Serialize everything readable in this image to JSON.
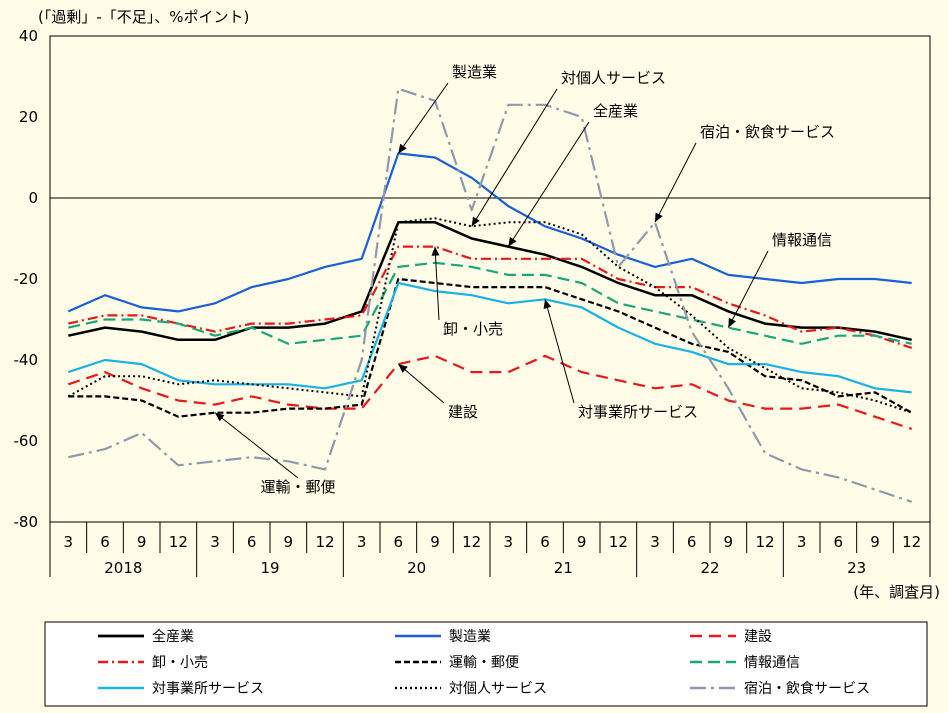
{
  "chart_data": {
    "type": "line",
    "title": "",
    "ylabel": "(「過剰」-「不足」、%ポイント)",
    "xlabel": "(年、調査月)",
    "ylim": [
      -80,
      40
    ],
    "yticks": [
      40,
      20,
      0,
      -20,
      -40,
      -60,
      -80
    ],
    "grid": false,
    "legend_placement": "bottom",
    "months": [
      "3",
      "6",
      "9",
      "12",
      "3",
      "6",
      "9",
      "12",
      "3",
      "6",
      "9",
      "12",
      "3",
      "6",
      "9",
      "12",
      "3",
      "6",
      "9",
      "12",
      "3",
      "6",
      "9",
      "12"
    ],
    "years": [
      "2018",
      "19",
      "20",
      "21",
      "22",
      "23"
    ],
    "series": [
      {
        "key": "all",
        "name": "全産業",
        "color": "#000000",
        "dash": "",
        "width": 2.5,
        "values": [
          -34,
          -32,
          -33,
          -35,
          -35,
          -32,
          -32,
          -31,
          -28,
          -6,
          -6,
          -10,
          -12,
          -14,
          -17,
          -21,
          -24,
          -24,
          -28,
          -31,
          -32,
          -32,
          -33,
          -35
        ]
      },
      {
        "key": "mfg",
        "name": "製造業",
        "color": "#1a5fd6",
        "dash": "",
        "width": 2.2,
        "values": [
          -28,
          -24,
          -27,
          -28,
          -26,
          -22,
          -20,
          -17,
          -15,
          11,
          10,
          5,
          -2,
          -7,
          -10,
          -14,
          -17,
          -15,
          -19,
          -20,
          -21,
          -20,
          -20,
          -21
        ]
      },
      {
        "key": "const",
        "name": "建設",
        "color": "#e8171c",
        "dash": "12,7",
        "width": 2.2,
        "values": [
          -46,
          -43,
          -47,
          -50,
          -51,
          -49,
          -51,
          -52,
          -52,
          -41,
          -39,
          -43,
          -43,
          -39,
          -43,
          -45,
          -47,
          -46,
          -50,
          -52,
          -52,
          -51,
          -54,
          -57
        ]
      },
      {
        "key": "whole",
        "name": "卸・小売",
        "color": "#e8171c",
        "dash": "10,4,2,4",
        "width": 2.2,
        "values": [
          -31,
          -29,
          -29,
          -31,
          -33,
          -31,
          -31,
          -30,
          -29,
          -12,
          -12,
          -15,
          -15,
          -15,
          -15,
          -20,
          -22,
          -22,
          -26,
          -29,
          -33,
          -32,
          -34,
          -37
        ]
      },
      {
        "key": "trans",
        "name": "運輸・郵便",
        "color": "#000000",
        "dash": "6,3",
        "width": 2.2,
        "values": [
          -49,
          -49,
          -50,
          -54,
          -53,
          -53,
          -52,
          -52,
          -51,
          -20,
          -21,
          -22,
          -22,
          -22,
          -25,
          -28,
          -32,
          -36,
          -38,
          -44,
          -45,
          -49,
          -48,
          -53
        ]
      },
      {
        "key": "info",
        "name": "情報通信",
        "color": "#1aa67a",
        "dash": "12,6",
        "width": 2.2,
        "values": [
          -32,
          -30,
          -30,
          -31,
          -34,
          -32,
          -36,
          -35,
          -34,
          -17,
          -16,
          -17,
          -19,
          -19,
          -21,
          -26,
          -28,
          -30,
          -32,
          -34,
          -36,
          -34,
          -34,
          -36
        ]
      },
      {
        "key": "biz",
        "name": "対事業所サービス",
        "color": "#1ab0e8",
        "dash": "",
        "width": 2.2,
        "values": [
          -43,
          -40,
          -41,
          -45,
          -46,
          -46,
          -46,
          -47,
          -45,
          -21,
          -23,
          -24,
          -26,
          -25,
          -27,
          -32,
          -36,
          -38,
          -41,
          -41,
          -43,
          -44,
          -47,
          -48
        ]
      },
      {
        "key": "pers",
        "name": "対個人サービス",
        "color": "#000000",
        "dash": "2,3",
        "width": 2.0,
        "values": [
          -49,
          -44,
          -44,
          -46,
          -45,
          -46,
          -47,
          -48,
          -49,
          -6,
          -5,
          -7,
          -6,
          -6,
          -9,
          -17,
          -22,
          -29,
          -37,
          -42,
          -47,
          -48,
          -50,
          -53
        ]
      },
      {
        "key": "hotel",
        "name": "宿泊・飲食サービス",
        "color": "#8e9aab",
        "dash": "16,5,3,5",
        "width": 2.2,
        "values": [
          -64,
          -62,
          -58,
          -66,
          -65,
          -64,
          -65,
          -67,
          -40,
          27,
          24,
          -3,
          23,
          23,
          20,
          -17,
          -6,
          -33,
          -47,
          -63,
          -67,
          -69,
          -72,
          -75
        ]
      }
    ],
    "annotations": [
      {
        "text": "製造業",
        "series": "mfg",
        "point": 9
      },
      {
        "text": "対個人サービス",
        "series": "pers",
        "point": 11
      },
      {
        "text": "全産業",
        "series": "all",
        "point": 12
      },
      {
        "text": "宿泊・飲食サービス",
        "series": "hotel",
        "point": 16
      },
      {
        "text": "情報通信",
        "series": "info",
        "point": 18
      },
      {
        "text": "卸・小売",
        "series": "whole",
        "point": 10
      },
      {
        "text": "建設",
        "series": "const",
        "point": 9
      },
      {
        "text": "対事業所サービス",
        "series": "biz",
        "point": 13
      },
      {
        "text": "運輸・郵便",
        "series": "trans",
        "point": 4
      }
    ]
  }
}
